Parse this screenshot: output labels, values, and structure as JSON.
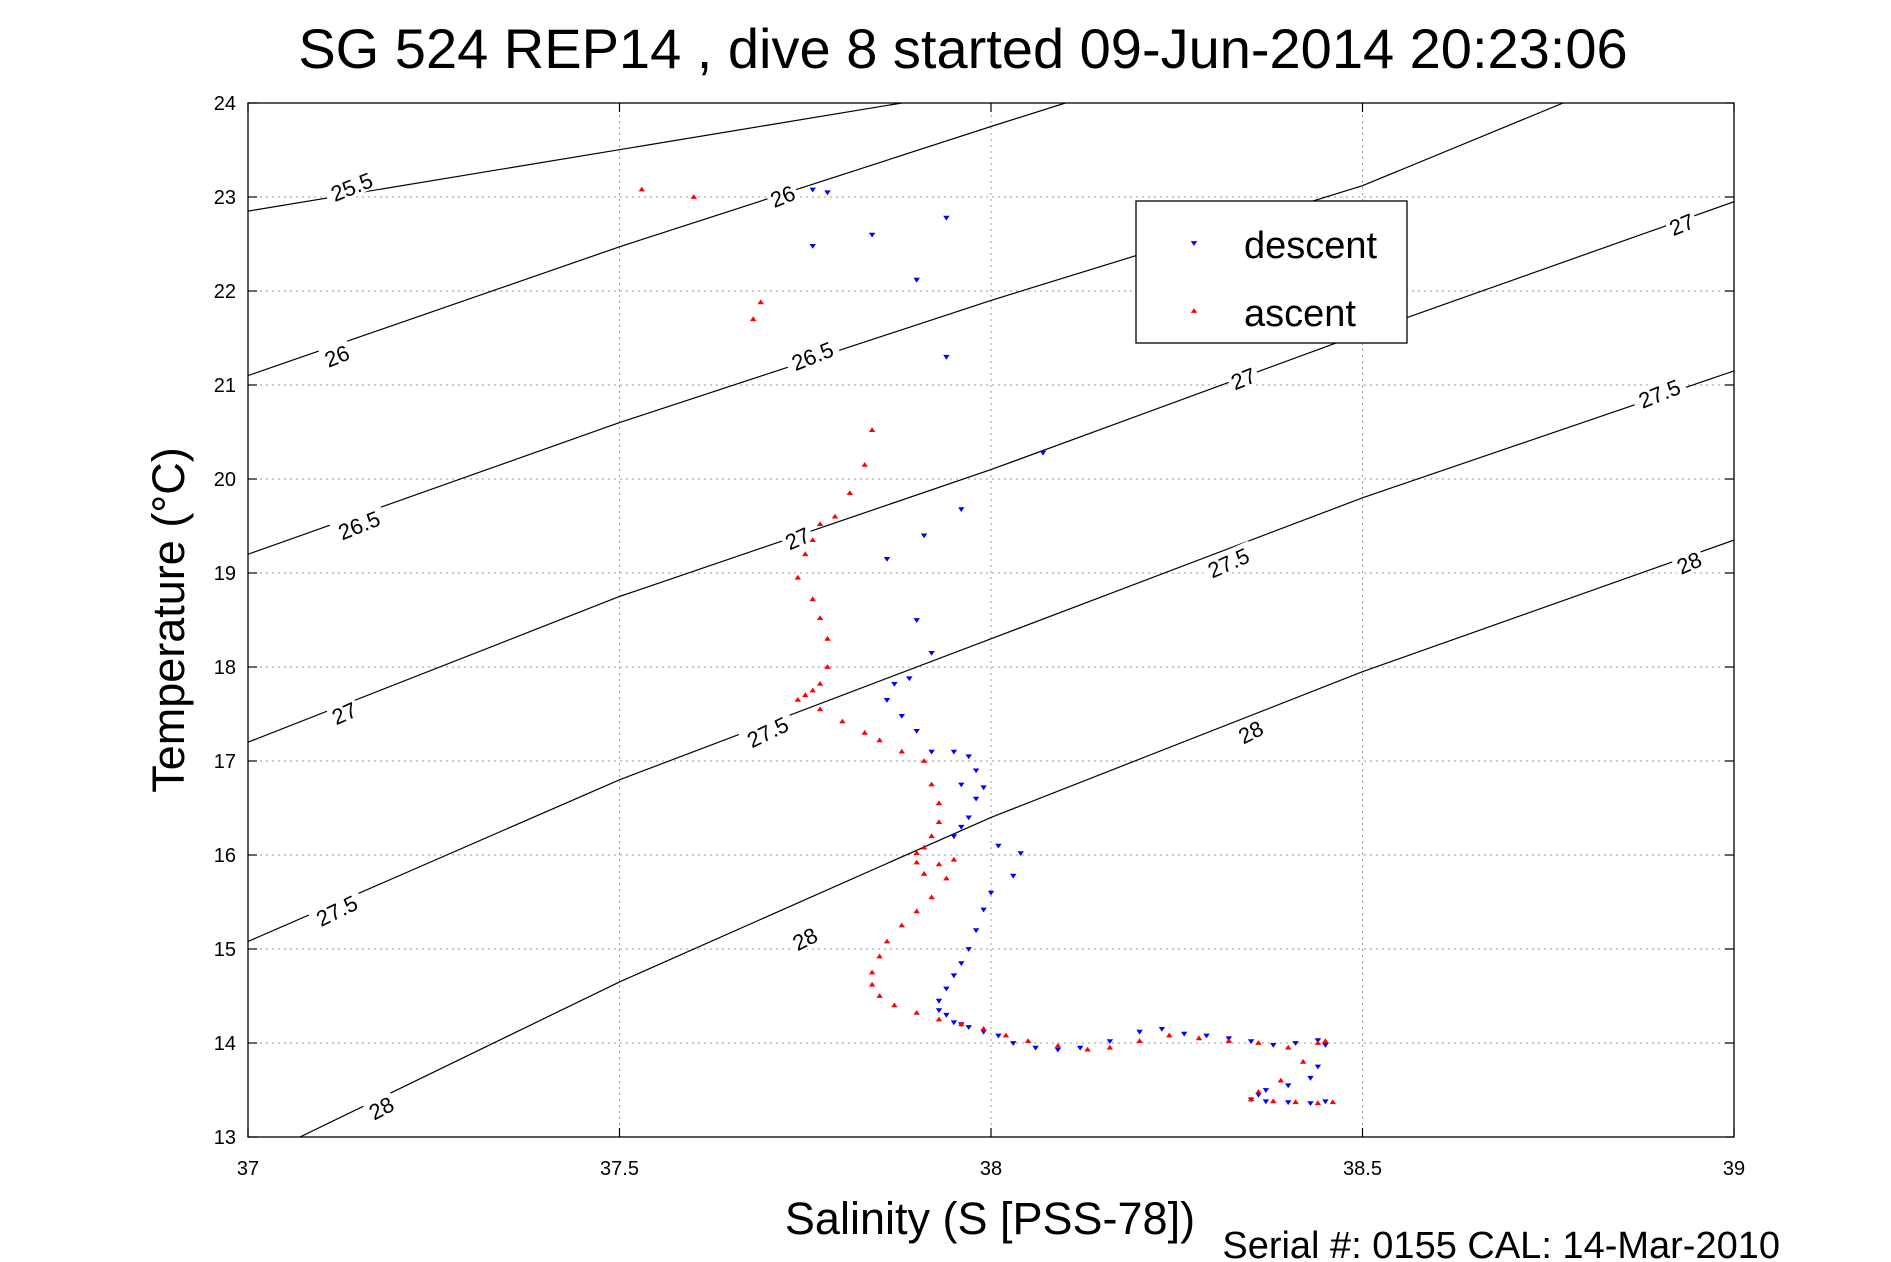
{
  "chart_data": {
    "type": "scatter",
    "title": "SG 524   REP14  , dive 8 started 09-Jun-2014 20:23:06",
    "xlabel": "Salinity (S [PSS-78])",
    "ylabel": "Temperature (°C)",
    "footer": "Serial #: 0155  CAL: 14-Mar-2010",
    "xlim": [
      37,
      39
    ],
    "ylim": [
      13,
      24
    ],
    "xticks": [
      "37",
      "37.5",
      "38",
      "38.5",
      "39"
    ],
    "yticks": [
      "13",
      "14",
      "15",
      "16",
      "17",
      "18",
      "19",
      "20",
      "21",
      "22",
      "23",
      "24"
    ],
    "grid": true,
    "legend": {
      "position": "top-right",
      "entries": [
        {
          "label": "descent",
          "color": "#0000ff",
          "marker": "triangle-down"
        },
        {
          "label": "ascent",
          "color": "#ff0000",
          "marker": "triangle-up"
        }
      ]
    },
    "isopycnals": [
      {
        "label": "25.5",
        "pts": [
          [
            37,
            22.85
          ],
          [
            37.88,
            24
          ]
        ]
      },
      {
        "label": "26",
        "pts": [
          [
            37,
            21.1
          ],
          [
            37.5,
            22.47
          ],
          [
            38,
            23.75
          ],
          [
            38.1,
            24
          ]
        ]
      },
      {
        "label": "26.5",
        "pts": [
          [
            37,
            19.2
          ],
          [
            37.5,
            20.6
          ],
          [
            38,
            21.9
          ],
          [
            38.5,
            23.12
          ],
          [
            38.77,
            24
          ]
        ]
      },
      {
        "label": "27",
        "pts": [
          [
            37,
            17.2
          ],
          [
            37.5,
            18.75
          ],
          [
            38,
            20.1
          ],
          [
            38.5,
            21.55
          ],
          [
            39,
            22.95
          ]
        ]
      },
      {
        "label": "27.5",
        "pts": [
          [
            37,
            15.08
          ],
          [
            37.5,
            16.8
          ],
          [
            38,
            18.3
          ],
          [
            38.5,
            19.8
          ],
          [
            39,
            21.15
          ]
        ]
      },
      {
        "label": "28",
        "pts": [
          [
            37.07,
            13
          ],
          [
            37.5,
            14.65
          ],
          [
            38,
            16.4
          ],
          [
            38.5,
            17.95
          ],
          [
            39,
            19.35
          ]
        ]
      }
    ],
    "contour_labels": [
      {
        "text": "25.5",
        "s": 37.14,
        "t": 23.1,
        "angle": -22
      },
      {
        "text": "26",
        "s": 37.72,
        "t": 23.0,
        "angle": -22
      },
      {
        "text": "26",
        "s": 37.12,
        "t": 21.3,
        "angle": -22
      },
      {
        "text": "26.5",
        "s": 37.76,
        "t": 21.3,
        "angle": -22
      },
      {
        "text": "26.5",
        "s": 37.15,
        "t": 19.5,
        "angle": -22
      },
      {
        "text": "27",
        "s": 37.74,
        "t": 19.36,
        "angle": -24
      },
      {
        "text": "27",
        "s": 38.34,
        "t": 21.06,
        "angle": -22
      },
      {
        "text": "27",
        "s": 38.93,
        "t": 22.7,
        "angle": -22
      },
      {
        "text": "27",
        "s": 37.13,
        "t": 17.5,
        "angle": -24
      },
      {
        "text": "27.5",
        "s": 37.7,
        "t": 17.3,
        "angle": -26
      },
      {
        "text": "27.5",
        "s": 38.32,
        "t": 19.1,
        "angle": -24
      },
      {
        "text": "27.5",
        "s": 38.9,
        "t": 20.9,
        "angle": -22
      },
      {
        "text": "27.5",
        "s": 37.12,
        "t": 15.4,
        "angle": -26
      },
      {
        "text": "28",
        "s": 37.75,
        "t": 15.1,
        "angle": -27
      },
      {
        "text": "28",
        "s": 38.35,
        "t": 17.3,
        "angle": -27
      },
      {
        "text": "28",
        "s": 38.94,
        "t": 19.1,
        "angle": -24
      },
      {
        "text": "28",
        "s": 37.18,
        "t": 13.3,
        "angle": -28
      }
    ],
    "series": [
      {
        "name": "descent",
        "color": "#0000ff",
        "marker": "triangle-down",
        "x": [
          37.76,
          37.78,
          37.84,
          37.94,
          37.76,
          37.9,
          37.94,
          38.07,
          37.96,
          37.91,
          37.86,
          37.9,
          37.92,
          37.87,
          37.89,
          37.86,
          37.88,
          37.9,
          37.92,
          37.95,
          37.97,
          37.98,
          37.96,
          37.99,
          37.98,
          37.97,
          37.96,
          37.95,
          38.01,
          38.04,
          38.03,
          38.0,
          37.99,
          37.98,
          37.97,
          37.96,
          37.95,
          37.94,
          37.93,
          37.93,
          37.94,
          37.95,
          37.96,
          37.97,
          37.99,
          38.01,
          38.03,
          38.06,
          38.09,
          38.12,
          38.16,
          38.2,
          38.23,
          38.26,
          38.29,
          38.32,
          38.35,
          38.38,
          38.41,
          38.44,
          38.45,
          38.44,
          38.43,
          38.4,
          38.37,
          38.36,
          38.35,
          38.37,
          38.4,
          38.43,
          38.45
        ],
        "y": [
          23.08,
          23.05,
          22.6,
          22.78,
          22.48,
          22.12,
          21.3,
          20.28,
          19.68,
          19.4,
          19.15,
          18.5,
          18.15,
          17.82,
          17.88,
          17.65,
          17.48,
          17.32,
          17.1,
          17.1,
          17.05,
          16.9,
          16.75,
          16.72,
          16.6,
          16.4,
          16.3,
          16.2,
          16.1,
          16.02,
          15.78,
          15.6,
          15.42,
          15.2,
          15.0,
          14.85,
          14.72,
          14.58,
          14.45,
          14.35,
          14.3,
          14.22,
          14.2,
          14.17,
          14.12,
          14.08,
          14.0,
          13.95,
          13.93,
          13.95,
          14.02,
          14.12,
          14.15,
          14.1,
          14.08,
          14.05,
          14.02,
          13.98,
          14.0,
          14.03,
          13.98,
          13.75,
          13.63,
          13.55,
          13.5,
          13.45,
          13.4,
          13.38,
          13.37,
          13.36,
          13.38
        ]
      },
      {
        "name": "ascent",
        "color": "#ff0000",
        "marker": "triangle-up",
        "x": [
          37.53,
          37.6,
          37.69,
          37.68,
          37.84,
          37.83,
          37.81,
          37.79,
          37.77,
          37.76,
          37.75,
          37.74,
          37.76,
          37.77,
          37.78,
          37.78,
          37.77,
          37.76,
          37.75,
          37.74,
          37.77,
          37.8,
          37.83,
          37.85,
          37.88,
          37.91,
          37.92,
          37.93,
          37.93,
          37.92,
          37.91,
          37.9,
          37.9,
          37.91,
          37.93,
          37.95,
          37.94,
          37.92,
          37.9,
          37.88,
          37.86,
          37.85,
          37.84,
          37.84,
          37.85,
          37.87,
          37.9,
          37.93,
          37.96,
          37.99,
          38.02,
          38.05,
          38.09,
          38.13,
          38.16,
          38.2,
          38.24,
          38.28,
          38.32,
          38.36,
          38.4,
          38.44,
          38.45,
          38.42,
          38.39,
          38.36,
          38.35,
          38.38,
          38.41,
          38.44,
          38.46
        ],
        "y": [
          23.08,
          23.0,
          21.88,
          21.7,
          20.52,
          20.15,
          19.85,
          19.6,
          19.52,
          19.35,
          19.2,
          18.95,
          18.72,
          18.52,
          18.3,
          18.0,
          17.82,
          17.75,
          17.7,
          17.65,
          17.55,
          17.42,
          17.3,
          17.22,
          17.1,
          17.0,
          16.75,
          16.55,
          16.35,
          16.2,
          16.08,
          16.02,
          15.92,
          15.8,
          15.9,
          15.95,
          15.75,
          15.55,
          15.4,
          15.25,
          15.08,
          14.92,
          14.75,
          14.62,
          14.5,
          14.4,
          14.32,
          14.25,
          14.2,
          14.15,
          14.08,
          14.02,
          13.97,
          13.93,
          13.95,
          14.02,
          14.08,
          14.05,
          14.02,
          14.0,
          13.95,
          14.0,
          14.02,
          13.8,
          13.6,
          13.48,
          13.4,
          13.38,
          13.37,
          13.36,
          13.37
        ]
      }
    ]
  }
}
